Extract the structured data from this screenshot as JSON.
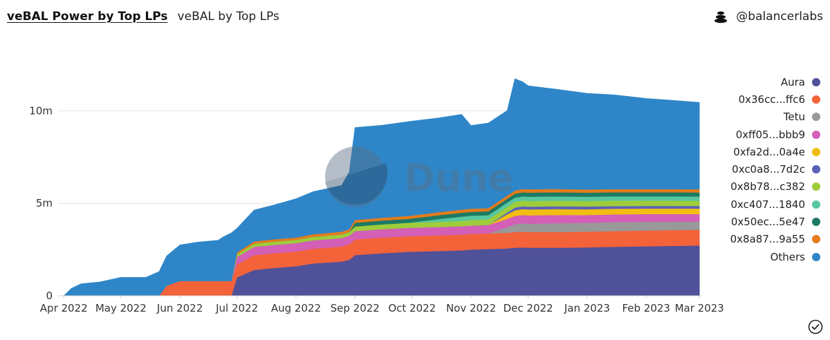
{
  "header": {
    "title": "veBAL Power by Top LPs",
    "subtitle": "veBAL by Top LPs"
  },
  "brand": {
    "icon": "balancer-logo-icon",
    "handle": "@balancerlabs"
  },
  "watermark": {
    "text": "Dune"
  },
  "chart_data": {
    "type": "area",
    "stacked": true,
    "title": "",
    "xlabel": "",
    "ylabel": "",
    "ylim": [
      0,
      14500000
    ],
    "yticks": [
      {
        "value": 0,
        "label": "0"
      },
      {
        "value": 5000000,
        "label": "5m"
      },
      {
        "value": 10000000,
        "label": "10m"
      }
    ],
    "xlim": [
      "2022-03-29",
      "2023-03-02"
    ],
    "xticks": [
      {
        "date": "2022-04-01",
        "label": "Apr 2022"
      },
      {
        "date": "2022-05-01",
        "label": "May 2022"
      },
      {
        "date": "2022-06-01",
        "label": "Jun 2022"
      },
      {
        "date": "2022-07-01",
        "label": "Jul 2022"
      },
      {
        "date": "2022-08-01",
        "label": "Aug 2022"
      },
      {
        "date": "2022-09-01",
        "label": "Sep 2022"
      },
      {
        "date": "2022-10-01",
        "label": "Oct 2022"
      },
      {
        "date": "2022-11-01",
        "label": "Nov 2022"
      },
      {
        "date": "2022-12-01",
        "label": "Dec 2022"
      },
      {
        "date": "2023-01-01",
        "label": "Jan 2023"
      },
      {
        "date": "2023-02-01",
        "label": "Feb 2023"
      },
      {
        "date": "2023-03-01",
        "label": "Mar 2023"
      }
    ],
    "grid": true,
    "legend_position": "right",
    "dates": [
      "2022-04-01",
      "2022-04-05",
      "2022-04-10",
      "2022-04-20",
      "2022-05-01",
      "2022-05-10",
      "2022-05-14",
      "2022-05-21",
      "2022-05-25",
      "2022-06-01",
      "2022-06-10",
      "2022-06-21",
      "2022-06-24",
      "2022-06-28",
      "2022-07-01",
      "2022-07-10",
      "2022-07-20",
      "2022-08-01",
      "2022-08-10",
      "2022-08-25",
      "2022-08-29",
      "2022-09-01",
      "2022-09-15",
      "2022-09-29",
      "2022-10-15",
      "2022-10-27",
      "2022-11-01",
      "2022-11-10",
      "2022-11-20",
      "2022-11-24",
      "2022-11-28",
      "2022-12-01",
      "2022-12-15",
      "2023-01-01",
      "2023-01-15",
      "2023-02-01",
      "2023-02-15",
      "2023-03-01"
    ],
    "series": [
      {
        "name": "Aura",
        "color": "#4f5199",
        "values": [
          0,
          0,
          0,
          0,
          0,
          0,
          0,
          0,
          0,
          0,
          0,
          0,
          0,
          0,
          1000000,
          1400000,
          1500000,
          1600000,
          1750000,
          1850000,
          1950000,
          2200000,
          2300000,
          2380000,
          2420000,
          2460000,
          2500000,
          2530000,
          2560000,
          2600000,
          2620000,
          2600000,
          2600000,
          2620000,
          2650000,
          2680000,
          2700000,
          2720000
        ]
      },
      {
        "name": "0x36cc...ffc6",
        "color": "#f4623a",
        "values": [
          0,
          0,
          0,
          0,
          0,
          0,
          0,
          0,
          550000,
          800000,
          800000,
          800000,
          800000,
          800000,
          700000,
          800000,
          800000,
          800000,
          800000,
          820000,
          850000,
          850000,
          850000,
          850000,
          850000,
          850000,
          850000,
          850000,
          850000,
          850000,
          850000,
          850000,
          850000,
          850000,
          850000,
          850000,
          850000,
          850000
        ]
      },
      {
        "name": "Tetu",
        "color": "#999999",
        "values": [
          0,
          0,
          0,
          0,
          0,
          0,
          0,
          0,
          0,
          0,
          0,
          0,
          0,
          0,
          0,
          0,
          0,
          0,
          0,
          0,
          0,
          0,
          0,
          0,
          0,
          0,
          0,
          0,
          300000,
          420000,
          450000,
          450000,
          470000,
          480000,
          480000,
          470000,
          460000,
          450000
        ]
      },
      {
        "name": "0xff05...bbb9",
        "color": "#d35fb7",
        "values": [
          0,
          0,
          0,
          0,
          0,
          0,
          0,
          0,
          0,
          0,
          0,
          0,
          0,
          0,
          400000,
          450000,
          450000,
          450000,
          450000,
          450000,
          450000,
          450000,
          450000,
          450000,
          450000,
          450000,
          450000,
          450000,
          450000,
          450000,
          450000,
          450000,
          450000,
          420000,
          420000,
          420000,
          410000,
          400000
        ]
      },
      {
        "name": "0xfa2d...0a4e",
        "color": "#f2bd12",
        "values": [
          0,
          0,
          0,
          0,
          0,
          0,
          0,
          0,
          0,
          0,
          0,
          0,
          0,
          0,
          0,
          0,
          0,
          0,
          0,
          0,
          0,
          0,
          0,
          0,
          0,
          0,
          0,
          0,
          250000,
          300000,
          320000,
          320000,
          320000,
          310000,
          310000,
          300000,
          300000,
          300000
        ]
      },
      {
        "name": "0xc0a8...7d2c",
        "color": "#5b61b8",
        "values": [
          0,
          0,
          0,
          0,
          0,
          0,
          0,
          0,
          0,
          0,
          0,
          0,
          0,
          0,
          0,
          0,
          0,
          0,
          0,
          0,
          0,
          0,
          0,
          0,
          0,
          0,
          0,
          0,
          100000,
          150000,
          150000,
          150000,
          150000,
          150000,
          140000,
          140000,
          140000,
          140000
        ]
      },
      {
        "name": "0x8b78...c382",
        "color": "#9fcc3b",
        "values": [
          0,
          0,
          0,
          0,
          0,
          0,
          0,
          0,
          0,
          0,
          0,
          0,
          0,
          0,
          150000,
          170000,
          180000,
          180000,
          190000,
          200000,
          200000,
          250000,
          260000,
          270000,
          280000,
          290000,
          300000,
          300000,
          300000,
          310000,
          310000,
          310000,
          310000,
          300000,
          300000,
          290000,
          290000,
          280000
        ]
      },
      {
        "name": "0xc407...1840",
        "color": "#58c7a0",
        "values": [
          0,
          0,
          0,
          0,
          0,
          0,
          0,
          0,
          0,
          0,
          0,
          0,
          0,
          0,
          0,
          0,
          0,
          0,
          0,
          0,
          0,
          0,
          0,
          0,
          150000,
          230000,
          230000,
          230000,
          230000,
          230000,
          230000,
          230000,
          230000,
          230000,
          230000,
          230000,
          230000,
          230000
        ]
      },
      {
        "name": "0x50ec...5e47",
        "color": "#1d7a64",
        "values": [
          0,
          0,
          0,
          0,
          0,
          0,
          0,
          0,
          0,
          0,
          0,
          0,
          0,
          0,
          0,
          0,
          0,
          0,
          0,
          0,
          0,
          200000,
          210000,
          210000,
          210000,
          210000,
          210000,
          210000,
          210000,
          210000,
          220000,
          220000,
          220000,
          220000,
          220000,
          220000,
          220000,
          220000
        ]
      },
      {
        "name": "0x8a87...9a55",
        "color": "#e57b1a",
        "values": [
          0,
          0,
          0,
          0,
          0,
          0,
          0,
          0,
          0,
          0,
          0,
          0,
          0,
          0,
          100000,
          120000,
          120000,
          120000,
          140000,
          150000,
          150000,
          150000,
          150000,
          160000,
          160000,
          170000,
          170000,
          170000,
          170000,
          170000,
          180000,
          180000,
          180000,
          170000,
          170000,
          170000,
          170000,
          170000
        ]
      },
      {
        "name": "Others",
        "color": "#2e86c8",
        "values": [
          0,
          400000,
          650000,
          750000,
          1000000,
          1000000,
          1000000,
          1300000,
          1600000,
          1950000,
          2100000,
          2200000,
          2400000,
          2600000,
          1300000,
          1700000,
          1850000,
          2100000,
          2300000,
          2500000,
          3100000,
          5000000,
          5000000,
          5100000,
          5100000,
          5150000,
          4500000,
          4600000,
          4600000,
          6050000,
          5800000,
          5600000,
          5400000,
          5200000,
          5100000,
          4900000,
          4800000,
          4700000
        ]
      }
    ]
  }
}
